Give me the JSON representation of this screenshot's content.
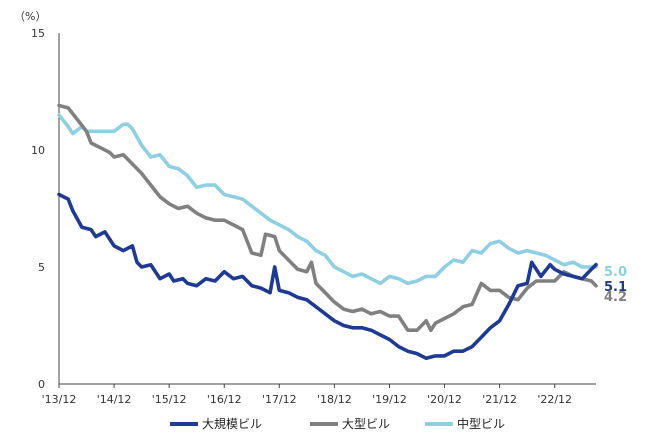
{
  "chart_data": {
    "type": "line",
    "unit_label": "（%）",
    "ylim": [
      0,
      15
    ],
    "yticks": [
      0,
      5,
      10,
      15
    ],
    "x_range": [
      "2013-12",
      "2023-09"
    ],
    "xticks": [
      {
        "date": "2013-12",
        "label": "'13/12"
      },
      {
        "date": "2014-12",
        "label": "'14/12"
      },
      {
        "date": "2015-12",
        "label": "'15/12"
      },
      {
        "date": "2016-12",
        "label": "'16/12"
      },
      {
        "date": "2017-12",
        "label": "'17/12"
      },
      {
        "date": "2018-12",
        "label": "'18/12"
      },
      {
        "date": "2019-12",
        "label": "'19/12"
      },
      {
        "date": "2020-12",
        "label": "'20/12"
      },
      {
        "date": "2021-12",
        "label": "'21/12"
      },
      {
        "date": "2022-12",
        "label": "'22/12"
      }
    ],
    "grid": false,
    "legend_position": "bottom",
    "series": [
      {
        "name": "大規模ビル",
        "color": "#1f3a93",
        "end_label": "5.1",
        "points": [
          [
            "2013-12",
            8.1
          ],
          [
            "2014-02",
            7.9
          ],
          [
            "2014-03",
            7.4
          ],
          [
            "2014-05",
            6.7
          ],
          [
            "2014-07",
            6.6
          ],
          [
            "2014-08",
            6.3
          ],
          [
            "2014-10",
            6.5
          ],
          [
            "2014-12",
            5.9
          ],
          [
            "2015-02",
            5.7
          ],
          [
            "2015-04",
            5.9
          ],
          [
            "2015-05",
            5.2
          ],
          [
            "2015-06",
            5.0
          ],
          [
            "2015-08",
            5.1
          ],
          [
            "2015-10",
            4.5
          ],
          [
            "2015-12",
            4.7
          ],
          [
            "2016-01",
            4.4
          ],
          [
            "2016-03",
            4.5
          ],
          [
            "2016-04",
            4.3
          ],
          [
            "2016-06",
            4.2
          ],
          [
            "2016-08",
            4.5
          ],
          [
            "2016-10",
            4.4
          ],
          [
            "2016-12",
            4.8
          ],
          [
            "2017-02",
            4.5
          ],
          [
            "2017-04",
            4.6
          ],
          [
            "2017-06",
            4.2
          ],
          [
            "2017-08",
            4.1
          ],
          [
            "2017-10",
            3.9
          ],
          [
            "2017-11",
            5.0
          ],
          [
            "2017-12",
            4.0
          ],
          [
            "2018-02",
            3.9
          ],
          [
            "2018-04",
            3.7
          ],
          [
            "2018-06",
            3.6
          ],
          [
            "2018-08",
            3.3
          ],
          [
            "2018-10",
            3.0
          ],
          [
            "2018-12",
            2.7
          ],
          [
            "2019-02",
            2.5
          ],
          [
            "2019-04",
            2.4
          ],
          [
            "2019-06",
            2.4
          ],
          [
            "2019-08",
            2.3
          ],
          [
            "2019-10",
            2.1
          ],
          [
            "2019-12",
            1.9
          ],
          [
            "2020-02",
            1.6
          ],
          [
            "2020-04",
            1.4
          ],
          [
            "2020-06",
            1.3
          ],
          [
            "2020-08",
            1.1
          ],
          [
            "2020-10",
            1.2
          ],
          [
            "2020-12",
            1.2
          ],
          [
            "2021-02",
            1.4
          ],
          [
            "2021-04",
            1.4
          ],
          [
            "2021-06",
            1.6
          ],
          [
            "2021-08",
            2.0
          ],
          [
            "2021-10",
            2.4
          ],
          [
            "2021-12",
            2.7
          ],
          [
            "2022-02",
            3.4
          ],
          [
            "2022-04",
            4.2
          ],
          [
            "2022-06",
            4.3
          ],
          [
            "2022-07",
            5.2
          ],
          [
            "2022-09",
            4.6
          ],
          [
            "2022-11",
            5.1
          ],
          [
            "2022-12",
            4.9
          ],
          [
            "2023-02",
            4.7
          ],
          [
            "2023-04",
            4.6
          ],
          [
            "2023-06",
            4.5
          ],
          [
            "2023-08",
            4.9
          ],
          [
            "2023-09",
            5.1
          ]
        ]
      },
      {
        "name": "大型ビル",
        "color": "#808080",
        "end_label": "4.2",
        "points": [
          [
            "2013-12",
            11.9
          ],
          [
            "2014-02",
            11.8
          ],
          [
            "2014-04",
            11.3
          ],
          [
            "2014-06",
            10.8
          ],
          [
            "2014-07",
            10.3
          ],
          [
            "2014-09",
            10.1
          ],
          [
            "2014-11",
            9.9
          ],
          [
            "2014-12",
            9.7
          ],
          [
            "2015-02",
            9.8
          ],
          [
            "2015-04",
            9.4
          ],
          [
            "2015-06",
            9.0
          ],
          [
            "2015-08",
            8.5
          ],
          [
            "2015-10",
            8.0
          ],
          [
            "2015-12",
            7.7
          ],
          [
            "2016-02",
            7.5
          ],
          [
            "2016-04",
            7.6
          ],
          [
            "2016-06",
            7.3
          ],
          [
            "2016-08",
            7.1
          ],
          [
            "2016-10",
            7.0
          ],
          [
            "2016-12",
            7.0
          ],
          [
            "2017-02",
            6.8
          ],
          [
            "2017-04",
            6.6
          ],
          [
            "2017-06",
            5.6
          ],
          [
            "2017-08",
            5.5
          ],
          [
            "2017-09",
            6.4
          ],
          [
            "2017-11",
            6.3
          ],
          [
            "2017-12",
            5.7
          ],
          [
            "2018-02",
            5.3
          ],
          [
            "2018-04",
            4.9
          ],
          [
            "2018-06",
            4.8
          ],
          [
            "2018-07",
            5.2
          ],
          [
            "2018-08",
            4.3
          ],
          [
            "2018-10",
            3.9
          ],
          [
            "2018-12",
            3.5
          ],
          [
            "2019-02",
            3.2
          ],
          [
            "2019-04",
            3.1
          ],
          [
            "2019-06",
            3.2
          ],
          [
            "2019-08",
            3.0
          ],
          [
            "2019-10",
            3.1
          ],
          [
            "2019-12",
            2.9
          ],
          [
            "2020-02",
            2.9
          ],
          [
            "2020-04",
            2.3
          ],
          [
            "2020-06",
            2.3
          ],
          [
            "2020-08",
            2.7
          ],
          [
            "2020-09",
            2.3
          ],
          [
            "2020-10",
            2.6
          ],
          [
            "2020-12",
            2.8
          ],
          [
            "2021-02",
            3.0
          ],
          [
            "2021-04",
            3.3
          ],
          [
            "2021-06",
            3.4
          ],
          [
            "2021-08",
            4.3
          ],
          [
            "2021-10",
            4.0
          ],
          [
            "2021-12",
            4.0
          ],
          [
            "2022-02",
            3.7
          ],
          [
            "2022-04",
            3.6
          ],
          [
            "2022-06",
            4.1
          ],
          [
            "2022-08",
            4.4
          ],
          [
            "2022-10",
            4.4
          ],
          [
            "2022-12",
            4.4
          ],
          [
            "2023-02",
            4.8
          ],
          [
            "2023-04",
            4.6
          ],
          [
            "2023-06",
            4.5
          ],
          [
            "2023-08",
            4.4
          ],
          [
            "2023-09",
            4.2
          ]
        ]
      },
      {
        "name": "中型ビル",
        "color": "#8fcfe3",
        "end_label": "5.0",
        "points": [
          [
            "2013-12",
            11.5
          ],
          [
            "2014-02",
            11.0
          ],
          [
            "2014-03",
            10.7
          ],
          [
            "2014-05",
            11.0
          ],
          [
            "2014-06",
            10.8
          ],
          [
            "2014-08",
            10.8
          ],
          [
            "2014-10",
            10.8
          ],
          [
            "2014-12",
            10.8
          ],
          [
            "2015-02",
            11.1
          ],
          [
            "2015-03",
            11.1
          ],
          [
            "2015-04",
            10.9
          ],
          [
            "2015-06",
            10.2
          ],
          [
            "2015-08",
            9.7
          ],
          [
            "2015-10",
            9.8
          ],
          [
            "2015-12",
            9.3
          ],
          [
            "2016-02",
            9.2
          ],
          [
            "2016-04",
            8.9
          ],
          [
            "2016-06",
            8.4
          ],
          [
            "2016-08",
            8.5
          ],
          [
            "2016-10",
            8.5
          ],
          [
            "2016-12",
            8.1
          ],
          [
            "2017-02",
            8.0
          ],
          [
            "2017-04",
            7.9
          ],
          [
            "2017-06",
            7.6
          ],
          [
            "2017-08",
            7.3
          ],
          [
            "2017-10",
            7.0
          ],
          [
            "2017-12",
            6.8
          ],
          [
            "2018-02",
            6.6
          ],
          [
            "2018-04",
            6.3
          ],
          [
            "2018-06",
            6.1
          ],
          [
            "2018-08",
            5.7
          ],
          [
            "2018-10",
            5.5
          ],
          [
            "2018-12",
            5.0
          ],
          [
            "2019-02",
            4.8
          ],
          [
            "2019-04",
            4.6
          ],
          [
            "2019-06",
            4.7
          ],
          [
            "2019-08",
            4.5
          ],
          [
            "2019-10",
            4.3
          ],
          [
            "2019-12",
            4.6
          ],
          [
            "2020-02",
            4.5
          ],
          [
            "2020-04",
            4.3
          ],
          [
            "2020-06",
            4.4
          ],
          [
            "2020-08",
            4.6
          ],
          [
            "2020-10",
            4.6
          ],
          [
            "2020-12",
            5.0
          ],
          [
            "2021-02",
            5.3
          ],
          [
            "2021-04",
            5.2
          ],
          [
            "2021-06",
            5.7
          ],
          [
            "2021-08",
            5.6
          ],
          [
            "2021-10",
            6.0
          ],
          [
            "2021-12",
            6.1
          ],
          [
            "2022-02",
            5.8
          ],
          [
            "2022-04",
            5.6
          ],
          [
            "2022-06",
            5.7
          ],
          [
            "2022-08",
            5.6
          ],
          [
            "2022-10",
            5.5
          ],
          [
            "2022-12",
            5.3
          ],
          [
            "2023-02",
            5.1
          ],
          [
            "2023-04",
            5.2
          ],
          [
            "2023-06",
            5.0
          ],
          [
            "2023-08",
            5.0
          ],
          [
            "2023-09",
            5.0
          ]
        ]
      }
    ]
  }
}
